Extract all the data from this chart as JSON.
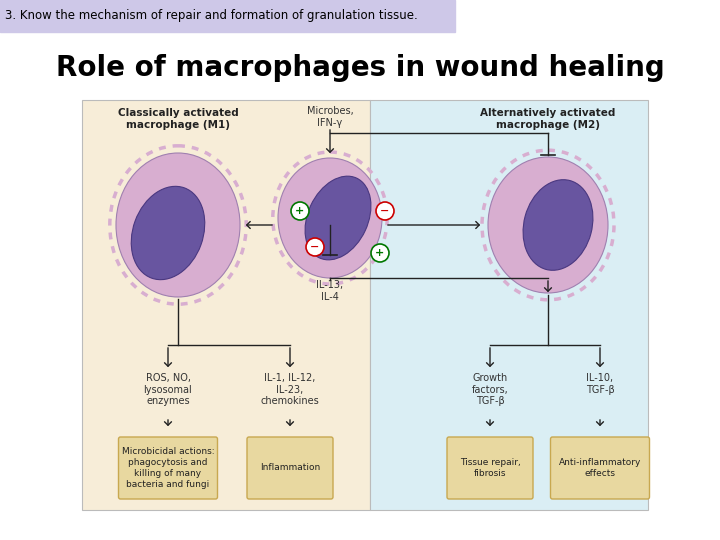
{
  "banner_text": "3. Know the mechanism of repair and formation of granulation tissue.",
  "banner_bg": "#cec8e8",
  "title_text": "Role of macrophages in wound healing",
  "title_color": "#000000",
  "bg_color": "#ffffff",
  "diagram_bg_left": "#f7edd8",
  "diagram_bg_right": "#daeef4",
  "diagram_border": "#bbbbbb",
  "box_fill": "#e8d8a0",
  "box_border": "#c8a850",
  "label_m1": "Classically activated\nmacrophage (M1)",
  "label_m2": "Alternatively activated\nmacrophage (M2)",
  "label_microbes": "Microbes,\nIFN-γ",
  "label_il13": "IL-13,\nIL-4",
  "label_ros": "ROS, NO,\nlysosomal\nenzymes",
  "label_il1": "IL-1, IL-12,\nIL-23,\nchemokines",
  "label_growth": "Growth\nfactors,\nTGF-β",
  "label_il10": "IL-10,\nTGF-β",
  "box_texts": [
    "Microbicidal actions:\nphagocytosis and\nkilling of many\nbacteria and fungi",
    "Inflammation",
    "Tissue repair,\nfibrosis",
    "Anti-inflammatory\neffects"
  ],
  "plus_color": "#007700",
  "minus_color": "#cc0000",
  "arrow_color": "#222222",
  "cell_outer_color": "#d8aed0",
  "cell_inner_color": "#6855a0",
  "cell_edge_color": "#a080b0",
  "nucleus_edge_color": "#4a3880"
}
